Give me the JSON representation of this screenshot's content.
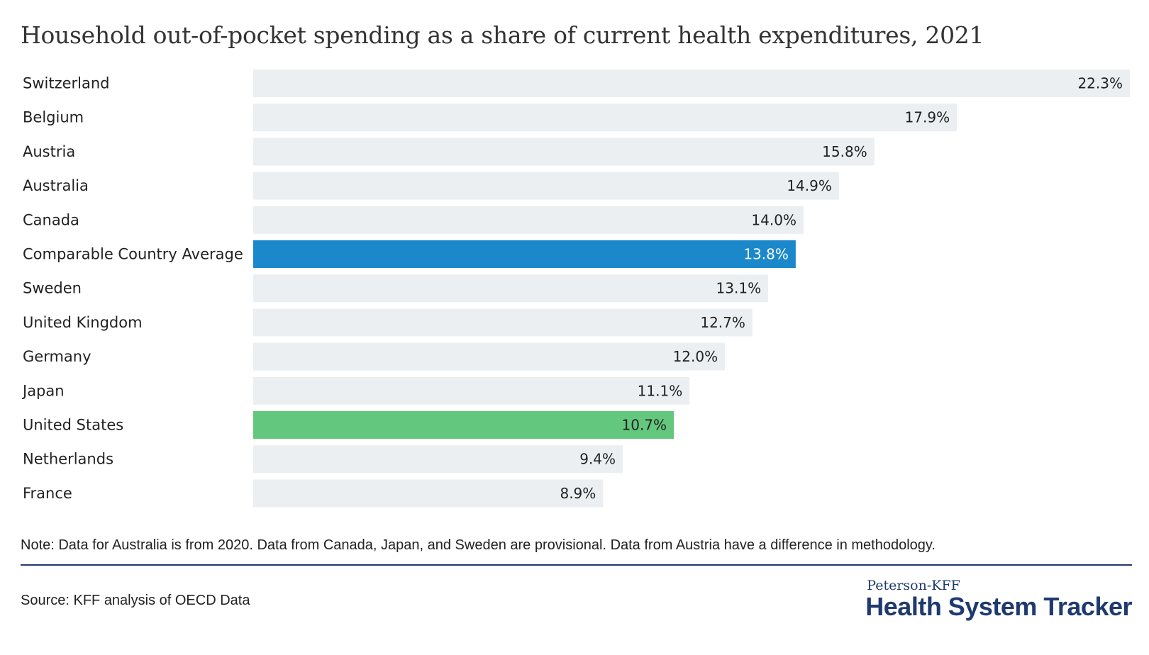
{
  "title": "Household out-of-pocket spending as a share of current health expenditures, 2021",
  "note": "Note: Data for Australia is from 2020. Data from Canada, Japan, and Sweden are provisional. Data from Austria have a difference in methodology.",
  "source": "Source: KFF analysis of OECD Data",
  "brand": {
    "top": "Peterson-KFF",
    "main": "Health System Tracker"
  },
  "colors": {
    "default_bar": "#ebeff2",
    "average_bar": "#1a88cb",
    "us_bar": "#63c77d",
    "text": "#222222",
    "brand": "#1f3a6e"
  },
  "chart_data": {
    "type": "bar",
    "orientation": "horizontal",
    "title": "Household out-of-pocket spending as a share of current health expenditures, 2021",
    "xlabel": "",
    "ylabel": "",
    "grid": false,
    "xlim": [
      0,
      22.3
    ],
    "categories": [
      "Switzerland",
      "Belgium",
      "Austria",
      "Australia",
      "Canada",
      "Comparable Country Average",
      "Sweden",
      "United Kingdom",
      "Germany",
      "Japan",
      "United States",
      "Netherlands",
      "France"
    ],
    "values": [
      22.3,
      17.9,
      15.8,
      14.9,
      14.0,
      13.8,
      13.1,
      12.7,
      12.0,
      11.1,
      10.7,
      9.4,
      8.9
    ],
    "labels": [
      "22.3%",
      "17.9%",
      "15.8%",
      "14.9%",
      "14.0%",
      "13.8%",
      "13.1%",
      "12.7%",
      "12.0%",
      "11.1%",
      "10.7%",
      "9.4%",
      "8.9%"
    ],
    "highlight": {
      "Comparable Country Average": "#1a88cb",
      "United States": "#63c77d"
    }
  }
}
